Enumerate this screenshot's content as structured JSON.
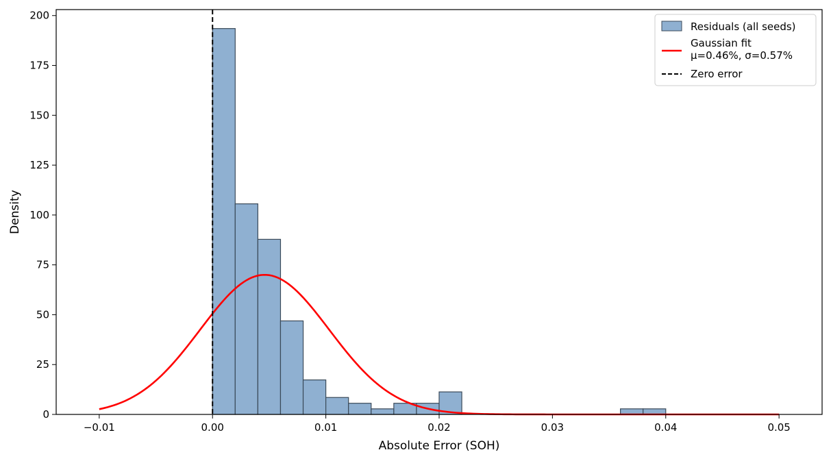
{
  "chart_data": {
    "type": "bar",
    "xlabel": "Absolute Error (SOH)",
    "ylabel": "Density",
    "xlim": [
      -0.0138,
      0.0538
    ],
    "ylim": [
      0,
      203
    ],
    "xticks": [
      -0.01,
      0.0,
      0.01,
      0.02,
      0.03,
      0.04,
      0.05
    ],
    "xtick_labels": [
      "−0.01",
      "0.00",
      "0.01",
      "0.02",
      "0.03",
      "0.04",
      "0.05"
    ],
    "yticks": [
      0,
      25,
      50,
      75,
      100,
      125,
      150,
      175,
      200
    ],
    "ytick_labels": [
      "0",
      "25",
      "50",
      "75",
      "100",
      "125",
      "150",
      "175",
      "200"
    ],
    "grid": false,
    "legend_position": "top-right",
    "histogram": {
      "name": "Residuals (all seeds)",
      "color": "#8fb0d1",
      "edge_color": "#3b4a59",
      "bin_edges": [
        0.0,
        0.002,
        0.004,
        0.006,
        0.008,
        0.01,
        0.012,
        0.014,
        0.016,
        0.018,
        0.02,
        0.022,
        0.024,
        0.026,
        0.028,
        0.03,
        0.032,
        0.034,
        0.036,
        0.038,
        0.04
      ],
      "values": [
        193.5,
        105.6,
        87.8,
        46.9,
        17.3,
        8.5,
        5.6,
        2.8,
        5.6,
        5.6,
        11.3,
        0,
        0,
        0,
        0,
        0,
        0,
        0,
        2.8,
        2.8
      ]
    },
    "gaussian_fit": {
      "name": "Gaussian fit",
      "legend_line2": "μ=0.46%, σ=0.57%",
      "color": "#ff0000",
      "mu": 0.0046,
      "sigma": 0.0057,
      "peak": 70,
      "x_range": [
        -0.01,
        0.05
      ]
    },
    "zero_line": {
      "name": "Zero error",
      "x": 0.0,
      "color": "#000000"
    }
  }
}
